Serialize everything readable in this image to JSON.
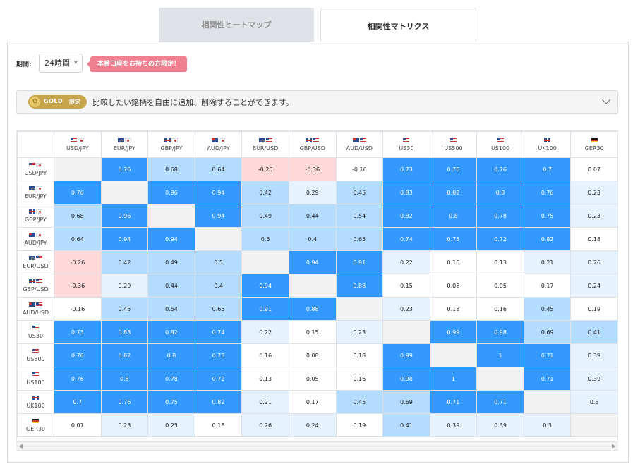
{
  "tabs": [
    {
      "label": "相関性ヒートマップ"
    },
    {
      "label": "相関性マトリクス"
    }
  ],
  "period": {
    "label": "期間:",
    "value": "24時間"
  },
  "promo": {
    "text": "本番口座をお持ちの方限定！"
  },
  "gold": {
    "badge_label": "GOLD",
    "badge_sub": "限定",
    "message": "比較したい銘柄を自由に追加、削除することができます。"
  },
  "symbols": [
    {
      "name": "USD/JPY",
      "flags": [
        "us",
        "jp"
      ]
    },
    {
      "name": "EUR/JPY",
      "flags": [
        "eu",
        "jp"
      ]
    },
    {
      "name": "GBP/JPY",
      "flags": [
        "gb",
        "jp"
      ]
    },
    {
      "name": "AUD/JPY",
      "flags": [
        "au",
        "jp"
      ]
    },
    {
      "name": "EUR/USD",
      "flags": [
        "eu",
        "us"
      ]
    },
    {
      "name": "GBP/USD",
      "flags": [
        "gb",
        "us"
      ]
    },
    {
      "name": "AUD/USD",
      "flags": [
        "au",
        "us"
      ]
    },
    {
      "name": "US30",
      "flags": [
        "us"
      ]
    },
    {
      "name": "US500",
      "flags": [
        "us"
      ]
    },
    {
      "name": "US100",
      "flags": [
        "us"
      ]
    },
    {
      "name": "UK100",
      "flags": [
        "gb"
      ]
    },
    {
      "name": "GER30",
      "flags": [
        "de"
      ]
    }
  ],
  "matrix": [
    [
      null,
      "0.76",
      "0.68",
      "0.64",
      "-0.26",
      "-0.36",
      "-0.16",
      "0.73",
      "0.76",
      "0.76",
      "0.7",
      "0.07"
    ],
    [
      "0.76",
      null,
      "0.96",
      "0.94",
      "0.42",
      "0.29",
      "0.45",
      "0.83",
      "0.82",
      "0.8",
      "0.76",
      "0.23"
    ],
    [
      "0.68",
      "0.96",
      null,
      "0.94",
      "0.49",
      "0.44",
      "0.54",
      "0.82",
      "0.8",
      "0.78",
      "0.75",
      "0.23"
    ],
    [
      "0.64",
      "0.94",
      "0.94",
      null,
      "0.5",
      "0.4",
      "0.65",
      "0.74",
      "0.73",
      "0.72",
      "0.82",
      "0.18"
    ],
    [
      "-0.26",
      "0.42",
      "0.49",
      "0.5",
      null,
      "0.94",
      "0.91",
      "0.22",
      "0.16",
      "0.13",
      "0.21",
      "0.26"
    ],
    [
      "-0.36",
      "0.29",
      "0.44",
      "0.4",
      "0.94",
      null,
      "0.88",
      "0.15",
      "0.08",
      "0.05",
      "0.17",
      "0.24"
    ],
    [
      "-0.16",
      "0.45",
      "0.54",
      "0.65",
      "0.91",
      "0.88",
      null,
      "0.23",
      "0.18",
      "0.16",
      "0.45",
      "0.19"
    ],
    [
      "0.73",
      "0.83",
      "0.82",
      "0.74",
      "0.22",
      "0.15",
      "0.23",
      null,
      "0.99",
      "0.98",
      "0.69",
      "0.41"
    ],
    [
      "0.76",
      "0.82",
      "0.8",
      "0.73",
      "0.16",
      "0.08",
      "0.18",
      "0.99",
      null,
      "1",
      "0.71",
      "0.39"
    ],
    [
      "0.76",
      "0.8",
      "0.78",
      "0.72",
      "0.13",
      "0.05",
      "0.16",
      "0.98",
      "1",
      null,
      "0.71",
      "0.39"
    ],
    [
      "0.7",
      "0.76",
      "0.75",
      "0.82",
      "0.21",
      "0.17",
      "0.45",
      "0.69",
      "0.71",
      "0.71",
      null,
      "0.3"
    ],
    [
      "0.07",
      "0.23",
      "0.23",
      "0.18",
      "0.26",
      "0.24",
      "0.19",
      "0.41",
      "0.39",
      "0.39",
      "0.3",
      null
    ]
  ],
  "colors": {
    "strong": "#3399ff",
    "medium": "#b3dcff",
    "light": "#e6f3ff",
    "negative": "#ffd9d9",
    "self": "#f2f2f2"
  }
}
